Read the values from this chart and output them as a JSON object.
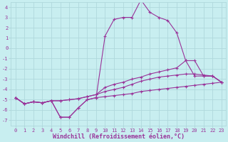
{
  "xlabel": "Windchill (Refroidissement éolien,°C)",
  "background_color": "#c8eef0",
  "line_color": "#993399",
  "grid_color": "#b0d8dc",
  "xlim": [
    -0.5,
    23.5
  ],
  "ylim": [
    -7.5,
    4.5
  ],
  "xticks": [
    0,
    1,
    2,
    3,
    4,
    5,
    6,
    7,
    8,
    9,
    10,
    11,
    12,
    13,
    14,
    15,
    16,
    17,
    18,
    19,
    20,
    21,
    22,
    23
  ],
  "yticks": [
    -7,
    -6,
    -5,
    -4,
    -3,
    -2,
    -1,
    0,
    1,
    2,
    3,
    4
  ],
  "series": [
    {
      "x": [
        0,
        1,
        2,
        3,
        4,
        5,
        6,
        7,
        8,
        9,
        10,
        11,
        12,
        13,
        14,
        15,
        16,
        17,
        18,
        19,
        20,
        21,
        22,
        23
      ],
      "y": [
        -4.8,
        -5.4,
        -5.2,
        -5.3,
        -5.1,
        -6.7,
        -6.7,
        -5.8,
        -5.0,
        -4.8,
        -4.7,
        -4.6,
        -4.5,
        -4.4,
        -4.2,
        -4.1,
        -4.0,
        -3.9,
        -3.8,
        -3.7,
        -3.6,
        -3.5,
        -3.4,
        -3.3
      ]
    },
    {
      "x": [
        0,
        1,
        2,
        3,
        4,
        5,
        6,
        7,
        8,
        9,
        10,
        11,
        12,
        13,
        14,
        15,
        16,
        17,
        18,
        19,
        20,
        21,
        22,
        23
      ],
      "y": [
        -4.8,
        -5.4,
        -5.2,
        -5.3,
        -5.1,
        -6.7,
        -6.7,
        -5.8,
        -5.0,
        -4.8,
        1.2,
        2.8,
        3.0,
        3.0,
        4.7,
        3.5,
        3.0,
        2.7,
        1.5,
        -1.2,
        -2.7,
        -2.7,
        -2.7,
        -3.3
      ]
    },
    {
      "x": [
        0,
        1,
        2,
        3,
        4,
        5,
        6,
        7,
        8,
        9,
        10,
        11,
        12,
        13,
        14,
        15,
        16,
        17,
        18,
        19,
        20,
        21,
        22,
        23
      ],
      "y": [
        -4.8,
        -5.4,
        -5.2,
        -5.3,
        -5.1,
        -5.1,
        -5.0,
        -4.9,
        -4.7,
        -4.5,
        -3.8,
        -3.5,
        -3.3,
        -3.0,
        -2.8,
        -2.5,
        -2.3,
        -2.1,
        -1.9,
        -1.2,
        -1.2,
        -2.7,
        -2.7,
        -3.3
      ]
    },
    {
      "x": [
        0,
        1,
        2,
        3,
        4,
        5,
        6,
        7,
        8,
        9,
        10,
        11,
        12,
        13,
        14,
        15,
        16,
        17,
        18,
        19,
        20,
        21,
        22,
        23
      ],
      "y": [
        -4.8,
        -5.4,
        -5.2,
        -5.3,
        -5.1,
        -5.1,
        -5.0,
        -4.9,
        -4.7,
        -4.5,
        -4.2,
        -4.0,
        -3.8,
        -3.5,
        -3.2,
        -3.0,
        -2.8,
        -2.7,
        -2.6,
        -2.5,
        -2.5,
        -2.6,
        -2.7,
        -3.3
      ]
    }
  ]
}
